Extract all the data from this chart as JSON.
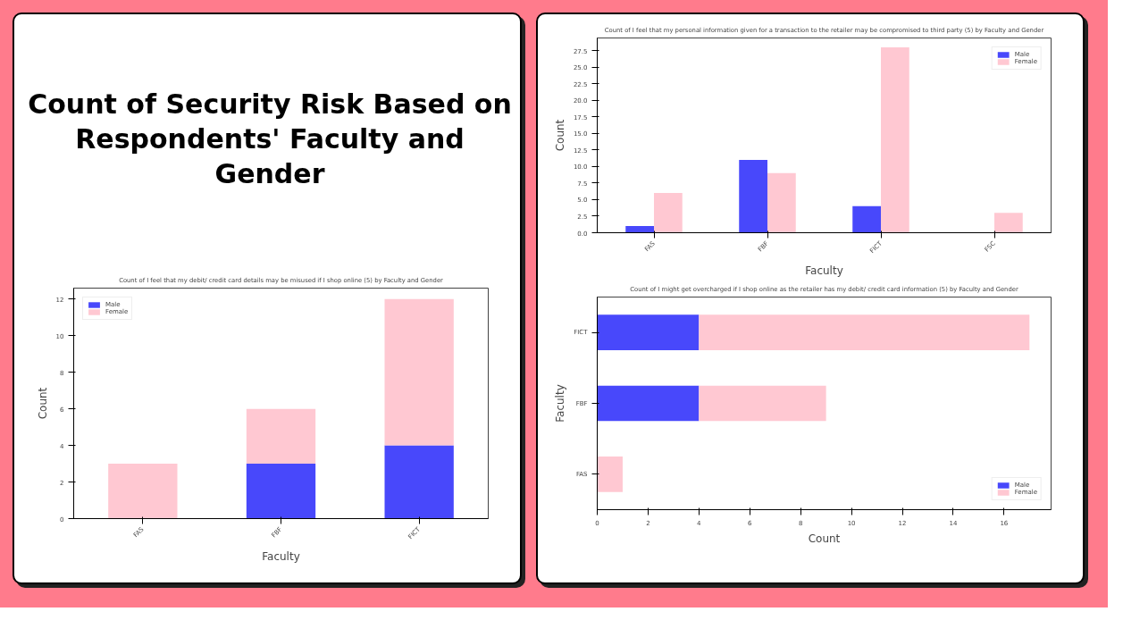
{
  "chart_data": [
    {
      "type": "other",
      "title": "Count of Security Risk Based on Respondents' Faculty and Gender"
    },
    {
      "type": "bar",
      "title": "Count of I feel that my debit/ credit card details may be misused if I shop online (5) by Faculty and Gender",
      "xlabel": "Faculty",
      "ylabel": "Count",
      "categories": [
        "FAS",
        "FBF",
        "FICT"
      ],
      "stacked": true,
      "series": [
        {
          "name": "Male",
          "color": "#4848fb",
          "values": [
            null,
            3,
            4
          ]
        },
        {
          "name": "Female",
          "color": "#ffc8d2",
          "values": [
            3,
            3,
            8
          ]
        }
      ],
      "ylim": [
        0,
        12.6
      ],
      "yticks": [
        0,
        2,
        4,
        6,
        8,
        10,
        12
      ],
      "legend": "top left"
    },
    {
      "type": "bar",
      "title": "Count of I feel that my personal information given for a transaction to the retailer may be compromised to third party (5) by Faculty and Gender",
      "xlabel": "Faculty",
      "ylabel": "Count",
      "categories": [
        "FAS",
        "FBF",
        "FICT",
        "FSC"
      ],
      "series": [
        {
          "name": "Male",
          "color": "#4848fb",
          "values": [
            1,
            11,
            4,
            null
          ]
        },
        {
          "name": "Female",
          "color": "#ffc8d2",
          "values": [
            6,
            9,
            28,
            3
          ]
        }
      ],
      "ylim": [
        0,
        29.4
      ],
      "yticks": [
        {
          "value": 0,
          "label": "0.0"
        },
        {
          "value": 2.5,
          "label": "2.5"
        },
        {
          "value": 5,
          "label": "5.0"
        },
        {
          "value": 7.5,
          "label": "7.5"
        },
        {
          "value": 10,
          "label": "10.0"
        },
        {
          "value": 12.5,
          "label": "12.5"
        },
        {
          "value": 15,
          "label": "15.0"
        },
        {
          "value": 17.5,
          "label": "17.5"
        },
        {
          "value": 20,
          "label": "20.0"
        },
        {
          "value": 22.5,
          "label": "22.5"
        },
        {
          "value": 25,
          "label": "25.0"
        },
        {
          "value": 27.5,
          "label": "27.5"
        }
      ],
      "legend": "top right"
    },
    {
      "type": "bar",
      "orientation": "horizontal",
      "stacked": true,
      "title": "Count of I might get overcharged if I shop online as the retailer has my debit/ credit card information (5) by Faculty and Gender",
      "xlabel": "Count",
      "ylabel": "Faculty",
      "categories": [
        "FICT",
        "FBF",
        "FAS"
      ],
      "series": [
        {
          "name": "Male",
          "color": "#4848fb",
          "values": [
            4,
            4,
            null
          ]
        },
        {
          "name": "Female",
          "color": "#ffc8d2",
          "values": [
            13,
            5,
            1
          ]
        }
      ],
      "xlim": [
        0,
        17.85
      ],
      "xticks": [
        0,
        2,
        4,
        6,
        8,
        10,
        12,
        14,
        16
      ],
      "legend": "bottom right"
    }
  ]
}
